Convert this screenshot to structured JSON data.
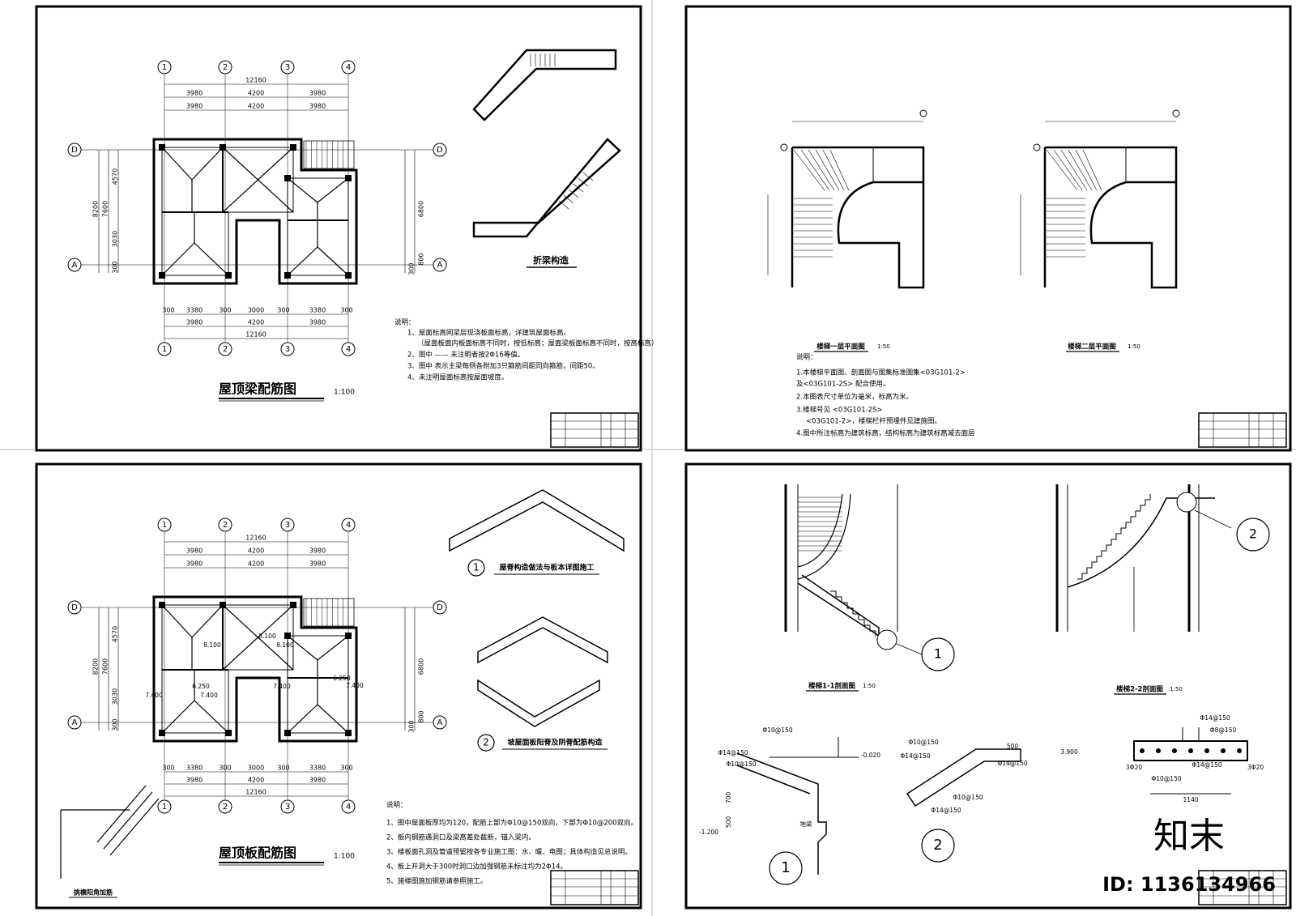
{
  "roof_beam_plan": {
    "title": "屋顶梁配筋图",
    "scale": "1:100",
    "axes_x": [
      "1",
      "2",
      "3",
      "4"
    ],
    "axes_y": [
      "D",
      "A"
    ],
    "dims_top": [
      "12160",
      "3980",
      "4200",
      "3980"
    ],
    "dims_bottom": [
      "300",
      "3380",
      "300",
      "3000",
      "300",
      "3380",
      "300",
      "3980",
      "4200",
      "3980",
      "12160"
    ],
    "dims_left": [
      "8200",
      "7600",
      "4570",
      "3030",
      "300"
    ],
    "dims_right": [
      "6800",
      "800",
      "300"
    ],
    "detail_title": "折梁构造",
    "notes": [
      "说明：",
      "1、屋面标高网梁层现浇板面标高，详建筑屋面标高。",
      "（屋面板面内板面标高不同时，按低标高；屋面梁板面标高不同时，按高标高）",
      "2、图中 —— 未注明者按2Φ16等值。",
      "3、图中 表示主梁每侧各附加3只箍筋间距同向箍筋，间距50。",
      "4、未注明屋面标高按屋面坡度。"
    ]
  },
  "stair_plans": {
    "plan1_title": "楼梯一层平面图",
    "plan2_title": "楼梯二层平面图",
    "scale": "1:50",
    "notes": [
      "说明：",
      "1.本楼梯平面图、剖面图与图集标准图集<03G101-2>",
      "及<03G101-2S> 配合使用。",
      "2.本图表尺寸单位为毫米，标高为米。",
      "3.楼梯号见 <03G101-2S>",
      "<03G101-2>，楼梯栏杆预埋件见建施图。",
      "4.图中所注标高为建筑标高，结构标高为建筑标高减去面层"
    ]
  },
  "roof_slab_plan": {
    "title": "屋顶板配筋图",
    "scale": "1:100",
    "axes_x": [
      "1",
      "2",
      "3",
      "4"
    ],
    "axes_y": [
      "D",
      "A"
    ],
    "dims_top": [
      "12160",
      "3980",
      "4200",
      "3980"
    ],
    "dims_bottom": [
      "300",
      "3380",
      "300",
      "3000",
      "300",
      "3380",
      "300",
      "3980",
      "4200",
      "3980",
      "12160"
    ],
    "dims_left": [
      "8200",
      "7600",
      "4570",
      "3030",
      "300"
    ],
    "dims_right": [
      "6800",
      "800",
      "300"
    ],
    "slab_levels": [
      "8.100",
      "8.100",
      "8.100",
      "7.400",
      "7.400",
      "7.400",
      "7.400",
      "6.250",
      "6.250"
    ],
    "detail1_title": "屋脊构造做法与板本详图施工",
    "detail1_no": "1",
    "detail2_title": "坡屋面板阳脊及阴脊配筋构造",
    "detail2_no": "2",
    "corner_title": "挑檐阳角加筋",
    "notes": [
      "说明：",
      "1、图中屋面板厚均为120，配筋上部为Φ10@150双向，下部为Φ10@200双向。",
      "2、板内钢筋遇洞口及梁高差处截断，锚入梁内。",
      "3、楼板面孔洞及管道预留按各专业施工图：水、暖、电图；具体构造见总说明。",
      "4、板上开洞大于300时洞口边加强钢筋未标注均为2Φ14。",
      "5、施楼图施加钢筋请参照施工。"
    ]
  },
  "stair_sections": {
    "section1_title": "楼梯1-1剖面图",
    "section2_title": "楼梯2-2剖面图",
    "scale": "1:50",
    "callouts": [
      "1",
      "2"
    ],
    "labels": [
      "Φ10@150",
      "Φ14@150",
      "Φ10@150",
      "-0.020",
      "-1.200",
      "700",
      "500",
      "地梁",
      "Φ10@150",
      "Φ14@150",
      "500",
      "3.900",
      "Φ14@150",
      "Φ10@150",
      "Φ14@150",
      "Φ14@150",
      "Φ8@150",
      "3Φ20",
      "Φ14@150",
      "Φ10@150",
      "3Φ20",
      "1140"
    ]
  },
  "watermark": {
    "brand": "知末",
    "id": "ID: 1136134966"
  }
}
